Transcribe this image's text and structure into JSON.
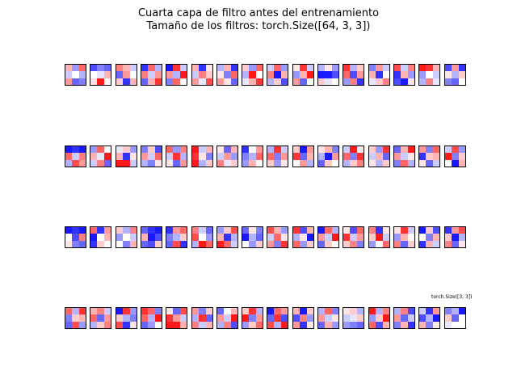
{
  "title": "Cuarta capa de filtro antes del entrenamiento",
  "subtitle": "Tamaño de los filtros: torch.Size([64, 3, 3])",
  "annotation": "torch.Size([3, 3])",
  "colormap": "bwr",
  "filters": [
    [
      [
        0.3,
        -0.4,
        0.6
      ],
      [
        -0.2,
        0.0,
        -0.3
      ],
      [
        0.4,
        -0.6,
        -0.5
      ]
    ],
    [
      [
        -0.7,
        -0.5,
        -0.6
      ],
      [
        0.0,
        -0.1,
        0.3
      ],
      [
        0.1,
        0.9,
        0.0
      ]
    ],
    [
      [
        0.5,
        0.3,
        -0.2
      ],
      [
        -0.6,
        0.4,
        0.0
      ],
      [
        0.2,
        -0.8,
        0.3
      ]
    ],
    [
      [
        -0.8,
        0.6,
        -0.3
      ],
      [
        0.5,
        -0.2,
        0.4
      ],
      [
        -0.6,
        0.3,
        0.8
      ]
    ],
    [
      [
        -0.9,
        0.8,
        -0.2
      ],
      [
        0.4,
        -0.3,
        0.9
      ],
      [
        -0.5,
        0.6,
        0.0
      ]
    ],
    [
      [
        0.3,
        -0.8,
        0.1
      ],
      [
        -0.2,
        0.5,
        0.2
      ],
      [
        0.4,
        -0.1,
        0.7
      ]
    ],
    [
      [
        -0.3,
        0.3,
        -0.8
      ],
      [
        0.1,
        -0.5,
        0.6
      ],
      [
        0.4,
        0.1,
        -0.6
      ]
    ],
    [
      [
        0.2,
        -0.4,
        0.6
      ],
      [
        -0.3,
        0.9,
        0.0
      ],
      [
        -0.1,
        0.3,
        0.8
      ]
    ],
    [
      [
        -0.2,
        0.6,
        -0.4
      ],
      [
        0.5,
        -0.9,
        0.3
      ],
      [
        -0.3,
        0.2,
        -0.7
      ]
    ],
    [
      [
        0.1,
        0.8,
        -0.2
      ],
      [
        -0.4,
        0.3,
        0.9
      ],
      [
        0.4,
        -0.6,
        0.0
      ]
    ],
    [
      [
        -0.3,
        0.1,
        -0.4
      ],
      [
        -0.9,
        -0.9,
        -0.7
      ],
      [
        0.2,
        -0.1,
        0.0
      ]
    ],
    [
      [
        0.8,
        -0.3,
        0.2
      ],
      [
        0.6,
        -0.7,
        0.4
      ],
      [
        -0.4,
        0.5,
        -0.8
      ]
    ],
    [
      [
        -0.5,
        0.4,
        -0.2
      ],
      [
        0.3,
        -0.8,
        0.0
      ],
      [
        -0.1,
        0.2,
        0.5
      ]
    ],
    [
      [
        0.7,
        -0.2,
        0.5
      ],
      [
        -0.8,
        0.3,
        -0.4
      ],
      [
        -0.7,
        -0.9,
        0.1
      ]
    ],
    [
      [
        0.9,
        0.8,
        0.3
      ],
      [
        -0.4,
        0.0,
        -0.2
      ],
      [
        -0.3,
        0.5,
        -0.1
      ]
    ],
    [
      [
        -0.7,
        0.4,
        -0.8
      ],
      [
        0.1,
        -0.3,
        0.2
      ],
      [
        -0.5,
        -0.6,
        0.0
      ]
    ],
    [
      [
        -0.9,
        -0.8,
        -0.9
      ],
      [
        0.6,
        -0.2,
        0.5
      ],
      [
        -0.3,
        0.7,
        0.4
      ]
    ],
    [
      [
        -0.4,
        0.6,
        0.0
      ],
      [
        0.3,
        -0.1,
        0.9
      ],
      [
        -0.2,
        0.5,
        -0.6
      ]
    ],
    [
      [
        -0.1,
        0.2,
        -0.4
      ],
      [
        0.3,
        -0.8,
        0.1
      ],
      [
        0.9,
        0.9,
        -0.2
      ]
    ],
    [
      [
        -0.5,
        0.2,
        -0.7
      ],
      [
        0.4,
        -0.2,
        0.6
      ],
      [
        -0.3,
        -0.5,
        0.1
      ]
    ],
    [
      [
        0.6,
        -0.4,
        0.5
      ],
      [
        -0.2,
        0.8,
        -0.3
      ],
      [
        0.1,
        -0.6,
        0.4
      ]
    ],
    [
      [
        0.9,
        -0.2,
        0.3
      ],
      [
        0.8,
        0.1,
        -0.5
      ],
      [
        0.9,
        -0.3,
        0.2
      ]
    ],
    [
      [
        0.1,
        -0.6,
        0.3
      ],
      [
        -0.2,
        0.4,
        -0.4
      ],
      [
        0.5,
        -0.1,
        0.2
      ]
    ],
    [
      [
        -0.8,
        0.0,
        0.4
      ],
      [
        -0.5,
        -0.3,
        0.6
      ],
      [
        -0.4,
        0.3,
        0.0
      ]
    ],
    [
      [
        -0.3,
        0.8,
        -0.2
      ],
      [
        0.6,
        -0.5,
        0.4
      ],
      [
        0.2,
        -0.4,
        0.1
      ]
    ],
    [
      [
        0.2,
        -0.9,
        0.4
      ],
      [
        0.8,
        -0.6,
        0.3
      ],
      [
        0.0,
        0.4,
        -0.3
      ]
    ],
    [
      [
        0.1,
        0.3,
        -0.5
      ],
      [
        -0.3,
        -0.9,
        0.4
      ],
      [
        -0.6,
        0.2,
        0.0
      ]
    ],
    [
      [
        -0.2,
        0.9,
        0.1
      ],
      [
        0.6,
        -0.5,
        0.8
      ],
      [
        -0.3,
        0.2,
        0.5
      ]
    ],
    [
      [
        0.2,
        -0.4,
        0.8
      ],
      [
        -0.2,
        0.3,
        -0.6
      ],
      [
        0.1,
        -0.3,
        0.2
      ]
    ],
    [
      [
        -0.6,
        0.3,
        0.9
      ],
      [
        0.4,
        -0.2,
        0.1
      ],
      [
        -0.5,
        0.6,
        -0.3
      ]
    ],
    [
      [
        0.4,
        -0.5,
        0.6
      ],
      [
        -0.8,
        0.2,
        0.3
      ],
      [
        0.1,
        -0.6,
        -0.2
      ]
    ],
    [
      [
        -0.2,
        0.7,
        -0.4
      ],
      [
        0.9,
        -0.5,
        0.2
      ],
      [
        0.0,
        -0.9,
        0.3
      ]
    ],
    [
      [
        -0.9,
        -0.8,
        -0.9
      ],
      [
        0.0,
        -0.7,
        0.5
      ],
      [
        0.1,
        -0.5,
        -0.6
      ]
    ],
    [
      [
        0.6,
        -0.8,
        0.4
      ],
      [
        -0.9,
        0.0,
        0.3
      ],
      [
        -0.8,
        0.2,
        0.0
      ]
    ],
    [
      [
        0.2,
        -0.3,
        0.5
      ],
      [
        -0.4,
        0.0,
        -0.2
      ],
      [
        0.0,
        -0.5,
        0.3
      ]
    ],
    [
      [
        -0.6,
        -0.8,
        -0.9
      ],
      [
        0.3,
        -0.9,
        -0.7
      ],
      [
        -0.6,
        -0.7,
        0.2
      ]
    ],
    [
      [
        -0.8,
        0.4,
        0.6
      ],
      [
        -0.5,
        -0.3,
        0.2
      ],
      [
        -0.6,
        0.7,
        -0.8
      ]
    ],
    [
      [
        0.5,
        -0.2,
        -0.6
      ],
      [
        0.7,
        0.0,
        -0.4
      ],
      [
        -0.3,
        0.9,
        0.6
      ]
    ],
    [
      [
        -0.4,
        0.2,
        0.7
      ],
      [
        0.3,
        -0.8,
        -0.3
      ],
      [
        0.9,
        0.6,
        -0.2
      ]
    ],
    [
      [
        -0.6,
        0.1,
        -0.5
      ],
      [
        -0.9,
        -0.3,
        -0.6
      ],
      [
        0.0,
        -0.4,
        0.2
      ]
    ],
    [
      [
        0.7,
        0.3,
        -0.4
      ],
      [
        -0.2,
        0.6,
        0.1
      ],
      [
        0.4,
        -0.5,
        0.8
      ]
    ],
    [
      [
        0.8,
        -0.7,
        0.3
      ],
      [
        -0.3,
        0.1,
        -0.9
      ],
      [
        0.6,
        -0.4,
        0.2
      ]
    ],
    [
      [
        -0.9,
        0.6,
        -0.3
      ],
      [
        0.4,
        -0.2,
        0.9
      ],
      [
        -0.6,
        0.2,
        0.0
      ]
    ],
    [
      [
        0.1,
        -0.7,
        0.6
      ],
      [
        0.8,
        -0.2,
        0.4
      ],
      [
        0.2,
        0.5,
        -0.5
      ]
    ],
    [
      [
        0.5,
        -0.8,
        0.1
      ],
      [
        0.2,
        0.9,
        -0.2
      ],
      [
        -0.4,
        0.0,
        0.6
      ]
    ],
    [
      [
        0.1,
        0.8,
        -0.2
      ],
      [
        -0.4,
        0.3,
        0.0
      ],
      [
        0.5,
        -0.6,
        0.2
      ]
    ],
    [
      [
        -0.9,
        0.2,
        -0.7
      ],
      [
        0.0,
        -0.5,
        0.3
      ],
      [
        -0.8,
        0.3,
        -0.2
      ]
    ],
    [
      [
        -0.8,
        0.4,
        0.7
      ],
      [
        0.2,
        -0.9,
        -0.3
      ],
      [
        0.5,
        -0.6,
        0.1
      ]
    ],
    [
      [
        0.6,
        -0.3,
        0.8
      ],
      [
        -0.5,
        0.2,
        0.3
      ],
      [
        -0.6,
        0.7,
        -0.4
      ]
    ],
    [
      [
        0.3,
        0.5,
        -0.2
      ],
      [
        0.6,
        -0.6,
        0.4
      ],
      [
        -0.3,
        0.2,
        0.5
      ]
    ],
    [
      [
        -0.9,
        0.8,
        -0.4
      ],
      [
        0.2,
        -0.3,
        -0.5
      ],
      [
        0.7,
        -0.8,
        0.1
      ]
    ],
    [
      [
        0.8,
        0.6,
        -0.5
      ],
      [
        0.6,
        -0.3,
        0.9
      ],
      [
        -0.6,
        -0.4,
        0.0
      ]
    ],
    [
      [
        0.1,
        -0.6,
        0.7
      ],
      [
        0.8,
        0.4,
        -0.2
      ],
      [
        0.9,
        0.9,
        0.3
      ]
    ],
    [
      [
        0.4,
        -0.5,
        0.2
      ],
      [
        -0.3,
        0.8,
        -0.6
      ],
      [
        0.5,
        -0.2,
        0.3
      ]
    ],
    [
      [
        -0.6,
        0.0,
        0.3
      ],
      [
        0.4,
        -0.2,
        0.9
      ],
      [
        -0.3,
        0.5,
        -0.7
      ]
    ],
    [
      [
        0.2,
        0.8,
        -0.3
      ],
      [
        0.9,
        -0.5,
        0.4
      ],
      [
        -0.4,
        0.2,
        0.6
      ]
    ],
    [
      [
        -0.9,
        0.6,
        0.4
      ],
      [
        -0.6,
        0.8,
        -0.7
      ],
      [
        0.7,
        -0.3,
        0.9
      ]
    ],
    [
      [
        0.3,
        -0.9,
        0.2
      ],
      [
        -0.7,
        0.5,
        -0.4
      ],
      [
        0.4,
        -0.8,
        0.1
      ]
    ],
    [
      [
        -0.3,
        0.6,
        -0.5
      ],
      [
        0.4,
        -0.2,
        0.1
      ],
      [
        -0.6,
        0.3,
        -0.4
      ]
    ],
    [
      [
        0.1,
        0.2,
        -0.3
      ],
      [
        -0.2,
        -0.1,
        0.2
      ],
      [
        -0.4,
        -0.5,
        -0.6
      ]
    ],
    [
      [
        0.9,
        -0.3,
        0.5
      ],
      [
        -0.4,
        0.2,
        0.9
      ],
      [
        0.6,
        -0.7,
        0.3
      ]
    ],
    [
      [
        -0.3,
        0.5,
        -0.7
      ],
      [
        0.4,
        -0.6,
        -0.2
      ],
      [
        -0.5,
        0.3,
        -0.8
      ]
    ],
    [
      [
        -0.2,
        -0.8,
        0.4
      ],
      [
        -0.7,
        -0.3,
        -0.9
      ],
      [
        0.3,
        -0.5,
        0.1
      ]
    ],
    [
      [
        -0.5,
        -0.3,
        -0.9
      ],
      [
        0.2,
        -0.6,
        0.0
      ],
      [
        -0.1,
        0.0,
        0.0
      ]
    ]
  ]
}
